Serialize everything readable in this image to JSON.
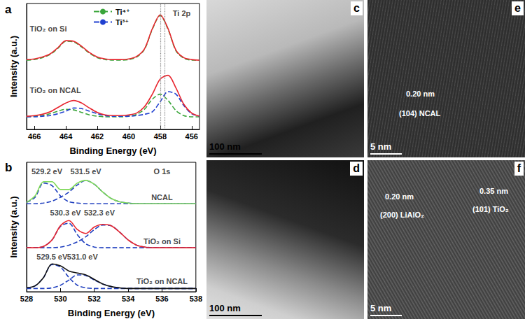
{
  "chart_data": [
    {
      "type": "line",
      "label": "a",
      "xlabel": "Binding Energy (eV)",
      "ylabel": "Intensity (a.u.)",
      "x": [
        466.5,
        466,
        465.5,
        465,
        464.5,
        464,
        463.5,
        463,
        462.5,
        462,
        461.5,
        461,
        460.5,
        460,
        459.5,
        459,
        458.5,
        458,
        457.5,
        457,
        456.5,
        456,
        455.5
      ],
      "xlim": [
        466.5,
        455.5
      ],
      "xticks": [
        466,
        464,
        462,
        460,
        458,
        456
      ],
      "ylim": [
        0,
        100
      ],
      "tick_labels": "x",
      "legend": "upper center",
      "vlines": [
        458.0,
        457.7
      ],
      "series": [
        {
          "color": "#3aa53a",
          "line_style": "dashed",
          "name": "Ti⁴⁺",
          "values": [
            55,
            55.5,
            57,
            59.5,
            64.5,
            70,
            69.5,
            65.5,
            60.5,
            57,
            55.5,
            55,
            55,
            55.5,
            57.5,
            63.5,
            79.5,
            90.5,
            79.5,
            62.5,
            56.5,
            55,
            55
          ]
        },
        {
          "color": "#e8262f",
          "line_style": "solid",
          "values": [
            55.5,
            56,
            57.5,
            60,
            65,
            70.5,
            70,
            66,
            61,
            57.5,
            56,
            55.5,
            55.5,
            56,
            58,
            64,
            80,
            91,
            80,
            63,
            57,
            55.5,
            55
          ]
        },
        {
          "color": "#3aa53a",
          "line_style": "dashed",
          "name": "Ti⁴⁺",
          "values": [
            10,
            10.5,
            11,
            12.5,
            14.5,
            16,
            15.5,
            13.5,
            11.5,
            10.5,
            10,
            10,
            10,
            10.5,
            12,
            16,
            24,
            28,
            23,
            15,
            11,
            10,
            10
          ]
        },
        {
          "color": "#2040d0",
          "line_style": "dashed",
          "name": "Ti³⁺",
          "values": [
            10,
            10,
            10.5,
            11,
            12.5,
            14.5,
            17,
            16.5,
            14.5,
            12.5,
            11,
            10.5,
            10.5,
            10.5,
            11,
            12,
            14,
            22,
            30,
            28,
            19,
            12.5,
            10.5
          ]
        },
        {
          "color": "#e8262f",
          "line_style": "solid",
          "values": [
            10.5,
            11,
            12,
            14,
            17.5,
            21,
            23,
            21,
            17,
            13.5,
            11.5,
            11,
            11,
            11.5,
            13,
            18,
            28,
            40,
            43,
            33,
            20,
            13,
            10.5
          ]
        }
      ],
      "annotations": [
        {
          "text": "Ti 2p",
          "x": 457.2,
          "y": 92
        },
        {
          "text": "TiO₂ on Si",
          "x": 466.3,
          "y": 80
        },
        {
          "text": "TiO₂ on NCAL",
          "x": 466.3,
          "y": 31
        }
      ]
    },
    {
      "type": "line",
      "label": "b",
      "xlabel": "Binding Energy (eV)",
      "ylabel": "Intensity (a.u.)",
      "x": [
        528,
        528.5,
        529,
        529.5,
        530,
        530.5,
        531,
        531.5,
        532,
        532.5,
        533,
        533.5,
        534,
        534.5,
        535,
        535.5,
        536,
        536.5,
        537,
        537.5,
        538
      ],
      "xlim": [
        528,
        538
      ],
      "xticks": [
        528,
        530,
        532,
        534,
        536,
        538
      ],
      "ylim": [
        0,
        100
      ],
      "tick_labels": "x",
      "series": [
        {
          "color": "#1f3fbf",
          "line_style": "dashed",
          "values": [
            69,
            73,
            84,
            82,
            74,
            69.5,
            68.5,
            68,
            68,
            68,
            68,
            68,
            68,
            68,
            68,
            68,
            68,
            68,
            68,
            68,
            68
          ]
        },
        {
          "color": "#1f3fbf",
          "line_style": "dashed",
          "values": [
            68,
            68,
            68.5,
            70,
            73,
            77,
            82.5,
            86,
            83,
            77,
            72,
            69.5,
            68.5,
            68,
            68,
            68,
            68,
            68,
            68,
            68,
            68
          ]
        },
        {
          "color": "#7ed957",
          "line_style": "solid",
          "values": [
            69,
            74,
            85,
            85,
            79,
            79,
            84,
            86,
            83,
            77,
            72,
            69.5,
            68.5,
            68,
            68,
            68,
            68,
            68,
            68,
            68,
            68
          ]
        },
        {
          "color": "#1f3fbf",
          "line_style": "dashed",
          "values": [
            34,
            34,
            35,
            40,
            50.5,
            53,
            44,
            37,
            34.5,
            34,
            34,
            34,
            34,
            34,
            34,
            34,
            34,
            34,
            34,
            34,
            34
          ]
        },
        {
          "color": "#1f3fbf",
          "line_style": "dashed",
          "values": [
            34,
            34,
            34,
            34,
            34.5,
            36,
            38.5,
            42.5,
            48,
            51.5,
            51,
            46,
            40,
            36,
            34.5,
            34,
            34,
            34,
            34,
            34,
            34
          ]
        },
        {
          "color": "#e8262f",
          "line_style": "solid",
          "values": [
            34,
            34,
            35,
            40,
            51,
            55,
            48,
            45,
            50,
            52,
            51,
            46,
            40,
            36,
            34.5,
            34,
            34,
            34,
            34,
            34,
            34
          ]
        },
        {
          "color": "#1f3fbf",
          "line_style": "dashed",
          "values": [
            3,
            4.5,
            11,
            21,
            19,
            11,
            5,
            3,
            2.5,
            2.5,
            2.5,
            2.5,
            2.5,
            2.5,
            2.5,
            2.5,
            2.5,
            2.5,
            2.5,
            2.5,
            2.5
          ]
        },
        {
          "color": "#1f3fbf",
          "line_style": "dashed",
          "values": [
            2.5,
            2.5,
            2.5,
            3,
            5,
            9,
            13,
            12.5,
            9,
            6,
            4,
            3,
            2.5,
            2.5,
            2.5,
            2.5,
            2.5,
            2.5,
            2.5,
            2.5,
            2.5
          ]
        },
        {
          "color": "#111111",
          "line_style": "solid",
          "values": [
            3,
            4.5,
            11,
            21.5,
            20,
            16,
            14.5,
            13,
            9.5,
            6,
            4,
            3,
            2.5,
            2.5,
            2.5,
            2.5,
            2.5,
            2.5,
            2.5,
            2.5,
            2.5
          ]
        }
      ],
      "annotations": [
        {
          "text": "O 1s",
          "x": 536.0,
          "y": 93
        },
        {
          "text": "529.2 eV",
          "x": 529.2,
          "y": 93
        },
        {
          "text": "531.5 eV",
          "x": 531.5,
          "y": 93
        },
        {
          "text": "NCAL",
          "x": 536.0,
          "y": 73
        },
        {
          "text": "530.3 eV",
          "x": 530.3,
          "y": 61
        },
        {
          "text": "532.3 eV",
          "x": 532.3,
          "y": 61
        },
        {
          "text": "TiO₂ on Si",
          "x": 536.0,
          "y": 39
        },
        {
          "text": "529.5 eV",
          "x": 529.5,
          "y": 27
        },
        {
          "text": "531.0 eV",
          "x": 531.3,
          "y": 27
        },
        {
          "text": "TiO₂ on NCAL",
          "x": 536.0,
          "y": 8
        }
      ]
    }
  ],
  "images": [
    {
      "label": "c",
      "scale_bar": "100 nm",
      "annotations": []
    },
    {
      "label": "d",
      "scale_bar": "100 nm",
      "annotations": []
    },
    {
      "label": "e",
      "scale_bar": "5 nm",
      "annotations": [
        "0.20 nm",
        "(104) NCAL"
      ]
    },
    {
      "label": "f",
      "scale_bar": "5 nm",
      "annotations": [
        "0.20 nm",
        "(200) LiAlO₂",
        "0.35 nm",
        "(101) TiO₂"
      ]
    }
  ]
}
